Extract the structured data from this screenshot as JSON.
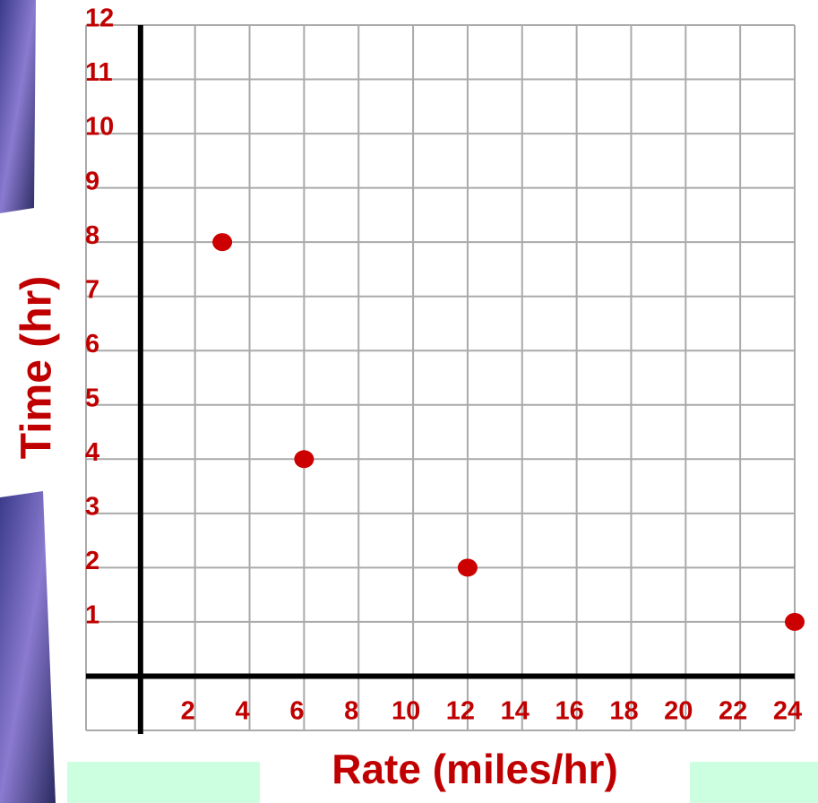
{
  "chart_data": {
    "type": "scatter",
    "x_label": "Rate (miles/hr)",
    "y_label": "Time (hr)",
    "x": [
      3,
      6,
      12,
      24
    ],
    "values": [
      8,
      4,
      2,
      1
    ],
    "color": "#cc0000",
    "xlim": [
      -2,
      24
    ],
    "ylim": [
      -1,
      12
    ],
    "xticks": [
      2,
      4,
      6,
      8,
      10,
      12,
      14,
      16,
      18,
      20,
      22,
      24
    ],
    "yticks": [
      1,
      2,
      3,
      4,
      5,
      6,
      7,
      8,
      9,
      10,
      11,
      12
    ],
    "grid": true
  }
}
